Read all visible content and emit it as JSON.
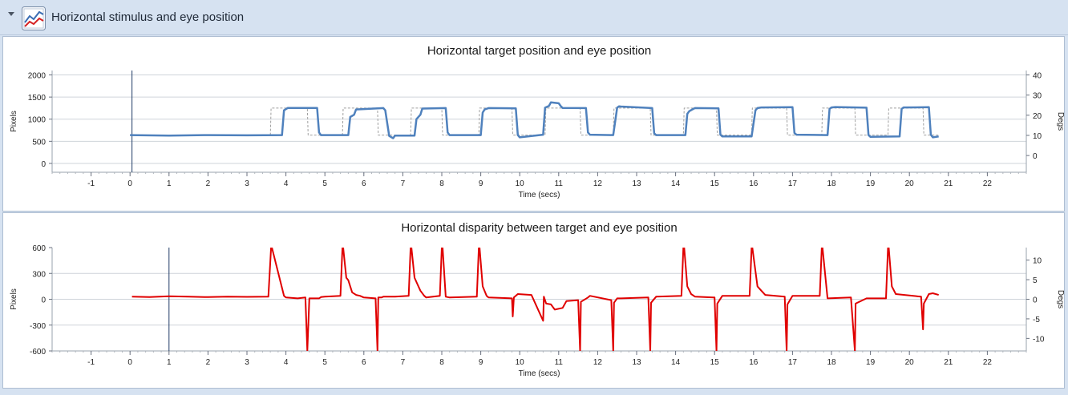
{
  "header": {
    "title": "Horizontal stimulus and eye position",
    "icon": "line-chart-icon"
  },
  "colors": {
    "eye": "#4f81bd",
    "target": "#a0a0a0",
    "disparity": "#e00000",
    "cursor": "#1f3b66",
    "grid": "#cfd4da"
  },
  "chart_data": [
    {
      "type": "line",
      "title": "Horizontal target position and eye position",
      "xlabel": "Time (secs)",
      "ylabel": "Pixels",
      "y2label": "Degs",
      "xlim": [
        -2,
        23
      ],
      "ylim": [
        -200,
        2100
      ],
      "y2lim": [
        -8.3,
        42.2
      ],
      "x_ticks": [
        -1,
        0,
        1,
        2,
        3,
        4,
        5,
        6,
        7,
        8,
        9,
        10,
        11,
        12,
        13,
        14,
        15,
        16,
        17,
        18,
        19,
        20,
        21,
        22
      ],
      "y_ticks": [
        0,
        500,
        1000,
        1500,
        2000
      ],
      "y2_ticks": [
        0,
        10,
        20,
        30,
        40
      ],
      "cursor_x": 0.05,
      "grid": true,
      "series": [
        {
          "name": "",
          "style": "dashed",
          "x": [
            0,
            3.6,
            3.62,
            4.55,
            4.57,
            5.45,
            5.47,
            6.35,
            6.37,
            7.2,
            7.22,
            8.0,
            8.02,
            8.95,
            8.97,
            9.8,
            9.82,
            10.65,
            10.67,
            11.55,
            11.57,
            12.4,
            12.42,
            13.35,
            13.37,
            14.2,
            14.22,
            15.05,
            15.07,
            15.95,
            15.97,
            16.85,
            16.87,
            17.75,
            17.77,
            18.6,
            18.62,
            19.45,
            19.47,
            20.35,
            20.37,
            20.75
          ],
          "y": [
            640,
            640,
            1250,
            1250,
            640,
            640,
            1250,
            1250,
            640,
            640,
            1250,
            1250,
            640,
            640,
            1250,
            1250,
            640,
            640,
            1250,
            1250,
            640,
            640,
            1250,
            1250,
            640,
            640,
            1250,
            1250,
            640,
            640,
            1250,
            1250,
            640,
            640,
            1250,
            1250,
            640,
            640,
            1250,
            1250,
            640,
            640
          ]
        },
        {
          "name": "",
          "style": "solid",
          "x": [
            0,
            1,
            2,
            3,
            3.9,
            3.95,
            4.05,
            4.8,
            4.85,
            4.9,
            5.6,
            5.65,
            5.75,
            5.8,
            6.5,
            6.55,
            6.65,
            6.75,
            6.8,
            7.3,
            7.35,
            7.45,
            7.5,
            8.1,
            8.15,
            8.2,
            9.0,
            9.05,
            9.1,
            9.2,
            9.9,
            9.95,
            10.0,
            10.3,
            10.6,
            10.65,
            10.75,
            10.8,
            11.0,
            11.05,
            11.1,
            11.7,
            11.75,
            11.8,
            12.4,
            12.5,
            12.55,
            12.6,
            13.4,
            13.45,
            13.5,
            14.25,
            14.3,
            14.35,
            14.45,
            14.5,
            15.1,
            15.15,
            15.2,
            15.95,
            16.05,
            16.1,
            16.2,
            17.0,
            17.05,
            17.1,
            17.9,
            17.95,
            18.0,
            18.1,
            18.9,
            18.95,
            19.0,
            19.75,
            19.8,
            19.85,
            20.5,
            20.55,
            20.6,
            20.75
          ],
          "y": [
            640,
            630,
            640,
            635,
            640,
            1200,
            1255,
            1255,
            700,
            640,
            640,
            1050,
            1100,
            1220,
            1250,
            1200,
            620,
            570,
            630,
            630,
            1000,
            1100,
            1240,
            1250,
            700,
            640,
            640,
            1150,
            1220,
            1250,
            1245,
            640,
            590,
            620,
            650,
            1260,
            1300,
            1380,
            1360,
            1300,
            1255,
            1250,
            700,
            650,
            640,
            1260,
            1290,
            1285,
            1250,
            680,
            640,
            640,
            1120,
            1180,
            1230,
            1250,
            1245,
            650,
            610,
            610,
            1200,
            1250,
            1265,
            1270,
            690,
            650,
            640,
            1230,
            1265,
            1275,
            1260,
            640,
            600,
            610,
            1230,
            1265,
            1270,
            650,
            590,
            610
          ]
        }
      ]
    },
    {
      "type": "line",
      "title": "Horizontal disparity between target and eye position",
      "xlabel": "Time (secs)",
      "ylabel": "Pixels",
      "y2label": "Degs",
      "xlim": [
        -2,
        23
      ],
      "ylim": [
        -600,
        600
      ],
      "y2lim": [
        -13.2,
        13.2
      ],
      "x_ticks": [
        -1,
        0,
        1,
        2,
        3,
        4,
        5,
        6,
        7,
        8,
        9,
        10,
        11,
        12,
        13,
        14,
        15,
        16,
        17,
        18,
        19,
        20,
        21,
        22
      ],
      "y_ticks": [
        -600,
        -300,
        0,
        300,
        600
      ],
      "y2_ticks": [
        -10,
        -5,
        0,
        5,
        10
      ],
      "cursor_x": 1,
      "grid": true,
      "series": [
        {
          "name": "",
          "style": "solid",
          "x": [
            0.05,
            0.5,
            1,
            1.5,
            2,
            2.5,
            3,
            3.55,
            3.62,
            3.64,
            3.95,
            4.0,
            4.3,
            4.5,
            4.55,
            4.6,
            4.85,
            4.9,
            5.0,
            5.4,
            5.45,
            5.47,
            5.55,
            5.6,
            5.7,
            5.8,
            5.9,
            6.0,
            6.3,
            6.35,
            6.37,
            6.45,
            6.5,
            6.7,
            6.8,
            7.15,
            7.2,
            7.22,
            7.3,
            7.35,
            7.45,
            7.55,
            7.6,
            7.95,
            8.0,
            8.02,
            8.1,
            8.2,
            8.9,
            8.95,
            8.97,
            9.05,
            9.15,
            9.2,
            9.8,
            9.82,
            9.85,
            9.95,
            10.3,
            10.6,
            10.62,
            10.68,
            10.8,
            10.9,
            11.1,
            11.2,
            11.5,
            11.55,
            11.57,
            11.75,
            11.8,
            12.35,
            12.4,
            12.42,
            12.5,
            12.6,
            13.3,
            13.35,
            13.37,
            13.5,
            14.15,
            14.2,
            14.22,
            14.3,
            14.4,
            14.5,
            15.0,
            15.05,
            15.07,
            15.2,
            15.9,
            15.95,
            15.97,
            16.1,
            16.2,
            16.3,
            16.8,
            16.85,
            16.87,
            17.0,
            17.1,
            17.7,
            17.75,
            17.77,
            17.9,
            18.5,
            18.6,
            18.62,
            18.9,
            19.4,
            19.45,
            19.47,
            19.55,
            19.65,
            20.3,
            20.35,
            20.37,
            20.5,
            20.6,
            20.75
          ],
          "y": [
            30,
            25,
            35,
            30,
            25,
            30,
            28,
            30,
            600,
            600,
            40,
            20,
            10,
            20,
            -600,
            10,
            10,
            25,
            30,
            40,
            600,
            600,
            250,
            220,
            80,
            50,
            40,
            20,
            10,
            -600,
            20,
            20,
            30,
            30,
            30,
            40,
            600,
            600,
            250,
            200,
            100,
            40,
            20,
            40,
            600,
            600,
            30,
            20,
            30,
            600,
            600,
            150,
            40,
            20,
            10,
            -200,
            20,
            60,
            50,
            -250,
            30,
            -50,
            -60,
            -120,
            -100,
            -20,
            -10,
            -600,
            -30,
            20,
            40,
            -10,
            -600,
            -40,
            10,
            10,
            20,
            -600,
            -40,
            30,
            40,
            600,
            600,
            150,
            60,
            30,
            20,
            -600,
            -50,
            40,
            40,
            600,
            600,
            150,
            100,
            50,
            30,
            -600,
            -60,
            40,
            40,
            40,
            600,
            600,
            10,
            20,
            -600,
            -50,
            10,
            10,
            600,
            600,
            150,
            60,
            30,
            -350,
            -50,
            60,
            70,
            50
          ]
        }
      ]
    }
  ]
}
